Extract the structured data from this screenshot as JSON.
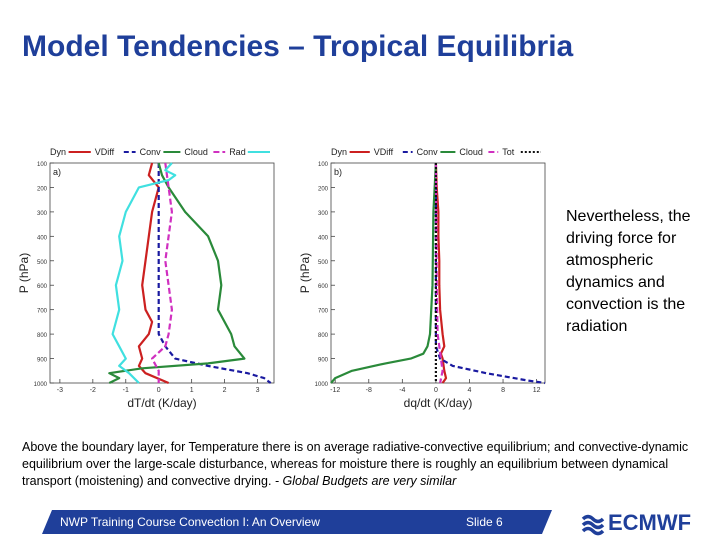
{
  "slide": {
    "title": "Model Tendencies – Tropical Equilibria",
    "side_text": "Nevertheless, the driving force for atmospheric dynamics and convection is  the radiation",
    "body_text": "Above the boundary layer, for Temperature  there is on average radiative-convective equilibrium; and convective-dynamic equilibrium over the large-scale disturbance, whereas  for moisture there is roughly an equilibrium between dynamical transport (moistening) and convective drying.",
    "body_text_tail": "- Global Budgets are very similar",
    "footer_left": "NWP Training Course Convection I: An Overview",
    "footer_slide": "Slide 6",
    "logo_text": "ECMWF",
    "title_color": "#1f3f9a"
  },
  "chart_data": [
    {
      "type": "line",
      "panel_label": "a)",
      "xlabel": "dT/dt (K/day)",
      "ylabel": "P (hPa)",
      "xlim": [
        -3.3,
        3.5
      ],
      "ylim": [
        1000,
        100
      ],
      "x_ticks": [
        -3,
        -2,
        -1,
        0,
        1,
        2,
        3
      ],
      "x_tick_labels": [
        "-3",
        "-2",
        "-1",
        "0",
        "1",
        "2",
        "3"
      ],
      "y_ticks": [
        100,
        200,
        300,
        400,
        500,
        600,
        700,
        800,
        900,
        1000
      ],
      "legend": [
        "Dyn",
        "VDiff",
        "Conv",
        "Cloud",
        "Rad"
      ],
      "series": [
        {
          "name": "Dyn",
          "color": "#cc2020",
          "dash": "",
          "y": [
            100,
            150,
            200,
            250,
            300,
            400,
            500,
            600,
            700,
            750,
            800,
            850,
            900,
            930,
            960,
            1000
          ],
          "x": [
            -0.2,
            -0.3,
            0,
            -0.1,
            -0.2,
            -0.3,
            -0.4,
            -0.5,
            -0.4,
            -0.2,
            -0.3,
            -0.6,
            -0.5,
            -0.6,
            -0.4,
            0.3
          ]
        },
        {
          "name": "VDiff",
          "color": "#1a1aa0",
          "dash": "5,3",
          "y": [
            100,
            800,
            850,
            900,
            930,
            960,
            980,
            1000
          ],
          "x": [
            0,
            0,
            0.2,
            0.5,
            1.5,
            2.7,
            3.2,
            3.4
          ]
        },
        {
          "name": "Conv",
          "color": "#2a8a3a",
          "dash": "",
          "y": [
            100,
            150,
            200,
            300,
            400,
            500,
            600,
            700,
            800,
            850,
            900,
            920,
            940,
            960,
            980,
            1000
          ],
          "x": [
            0,
            0.1,
            0.3,
            0.8,
            1.5,
            1.8,
            1.9,
            1.8,
            2.2,
            2.3,
            2.6,
            1.5,
            -0.5,
            -1.5,
            -1.2,
            -1.5
          ]
        },
        {
          "name": "Cloud",
          "color": "#d030c0",
          "dash": "6,3",
          "y": [
            100,
            200,
            300,
            400,
            500,
            600,
            700,
            800,
            850,
            900,
            950,
            1000
          ],
          "x": [
            0.2,
            0.3,
            0.4,
            0.3,
            0.2,
            0.3,
            0.4,
            0.3,
            0.2,
            -0.2,
            0,
            0
          ]
        },
        {
          "name": "Rad",
          "color": "#40e0e0",
          "dash": "",
          "y": [
            100,
            130,
            150,
            170,
            200,
            300,
            400,
            500,
            600,
            700,
            800,
            850,
            900,
            930,
            960,
            1000
          ],
          "x": [
            0.4,
            0.2,
            0.5,
            0.3,
            -0.6,
            -1,
            -1.2,
            -1.1,
            -1.3,
            -1.2,
            -1.4,
            -1.2,
            -1,
            -1.2,
            -0.9,
            -0.6
          ]
        }
      ]
    },
    {
      "type": "line",
      "panel_label": "b)",
      "xlabel": "dq/dt (K/day)",
      "ylabel": "P (hPa)",
      "xlim": [
        -12.5,
        13
      ],
      "ylim": [
        1000,
        100
      ],
      "x_ticks": [
        -12,
        -8,
        -4,
        0,
        4,
        8,
        12
      ],
      "x_tick_labels": [
        "-12",
        "-8",
        "-4",
        "0",
        "4",
        "8",
        "12"
      ],
      "y_ticks": [
        100,
        200,
        300,
        400,
        500,
        600,
        700,
        800,
        900,
        1000
      ],
      "legend": [
        "Dyn",
        "VDiff",
        "Conv",
        "Cloud",
        "Tot"
      ],
      "series": [
        {
          "name": "Dyn",
          "color": "#cc2020",
          "dash": "",
          "y": [
            100,
            200,
            300,
            400,
            500,
            600,
            700,
            800,
            850,
            880,
            900,
            950,
            980,
            1000
          ],
          "x": [
            0,
            0.1,
            0.3,
            0.3,
            0.4,
            0.4,
            0.5,
            0.8,
            1,
            0.6,
            0.8,
            1,
            1.2,
            0.8
          ]
        },
        {
          "name": "VDiff",
          "color": "#1a1aa0",
          "dash": "5,3",
          "y": [
            100,
            850,
            900,
            930,
            960,
            990,
            1000
          ],
          "x": [
            0,
            0,
            0.5,
            2,
            6,
            11,
            13
          ]
        },
        {
          "name": "Conv",
          "color": "#2a8a3a",
          "dash": "",
          "y": [
            100,
            300,
            600,
            800,
            850,
            880,
            900,
            920,
            950,
            980,
            1000
          ],
          "x": [
            0,
            -0.3,
            -0.4,
            -0.7,
            -1,
            -1.5,
            -3,
            -6,
            -10,
            -12,
            -12.5
          ]
        },
        {
          "name": "Cloud",
          "color": "#d030c0",
          "dash": "6,3",
          "y": [
            100,
            600,
            800,
            850,
            900,
            950,
            1000
          ],
          "x": [
            0,
            0.1,
            0.2,
            0.4,
            0.6,
            0.8,
            0.5
          ]
        },
        {
          "name": "Tot",
          "color": "#111111",
          "dash": "2,2",
          "y": [
            100,
            1000
          ],
          "x": [
            0,
            0
          ]
        }
      ]
    }
  ]
}
